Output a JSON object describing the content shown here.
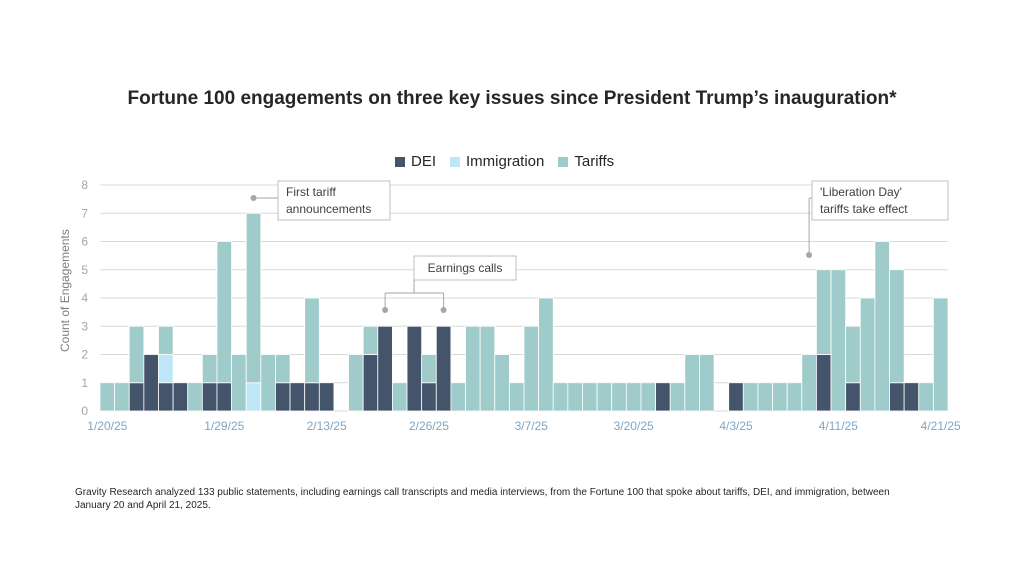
{
  "title": "Fortune 100 engagements on three key issues since President Trump’s inauguration*",
  "footnote": "Gravity Research analyzed 133 public statements, including earnings call transcripts and media interviews, from the Fortune 100 that spoke about tariffs, DEI, and immigration, between January 20 and April 21, 2025.",
  "colors": {
    "DEI": "#44546a",
    "Immigration": "#bde7f7",
    "Tariffs": "#9fcbcb",
    "grid": "#d9d9d9",
    "axisText": "#a6a6a6",
    "tickText": "#7da6c4"
  },
  "chart_data": {
    "type": "bar",
    "stacked": true,
    "ylabel": "Count of Engagements",
    "xlabel": "",
    "ylim": [
      0,
      8
    ],
    "yticks": [
      0,
      1,
      2,
      3,
      4,
      5,
      6,
      7,
      8
    ],
    "grid": true,
    "legend_position": "top",
    "x_tick_labels": [
      {
        "index": 0,
        "label": "1/20/25"
      },
      {
        "index": 8,
        "label": "1/29/25"
      },
      {
        "index": 15,
        "label": "2/13/25"
      },
      {
        "index": 22,
        "label": "2/26/25"
      },
      {
        "index": 29,
        "label": "3/7/25"
      },
      {
        "index": 36,
        "label": "3/20/25"
      },
      {
        "index": 43,
        "label": "4/3/25"
      },
      {
        "index": 50,
        "label": "4/11/25"
      },
      {
        "index": 57,
        "label": "4/21/25"
      }
    ],
    "series": [
      {
        "name": "DEI",
        "values": [
          0,
          0,
          1,
          2,
          1,
          1,
          0,
          1,
          1,
          0,
          0,
          0,
          1,
          1,
          1,
          1,
          0,
          0,
          2,
          3,
          0,
          3,
          1,
          3,
          0,
          0,
          0,
          0,
          0,
          0,
          0,
          0,
          0,
          0,
          0,
          0,
          0,
          0,
          1,
          0,
          0,
          0,
          0,
          1,
          0,
          0,
          0,
          0,
          0,
          2,
          0,
          1,
          0,
          0,
          1,
          1,
          0,
          0
        ]
      },
      {
        "name": "Immigration",
        "values": [
          0,
          0,
          0,
          0,
          1,
          0,
          0,
          0,
          0,
          0,
          1,
          0,
          0,
          0,
          0,
          0,
          0,
          0,
          0,
          0,
          0,
          0,
          0,
          0,
          0,
          0,
          0,
          0,
          0,
          0,
          0,
          0,
          0,
          0,
          0,
          0,
          0,
          0,
          0,
          0,
          0,
          0,
          0,
          0,
          0,
          0,
          0,
          0,
          0,
          0,
          0,
          0,
          0,
          0,
          0,
          0,
          0,
          0
        ]
      },
      {
        "name": "Tariffs",
        "values": [
          1,
          1,
          2,
          0,
          1,
          0,
          1,
          1,
          5,
          2,
          6,
          2,
          1,
          0,
          3,
          0,
          0,
          2,
          1,
          0,
          1,
          0,
          1,
          0,
          1,
          3,
          3,
          2,
          1,
          3,
          4,
          1,
          1,
          1,
          1,
          1,
          1,
          1,
          0,
          1,
          2,
          2,
          0,
          0,
          1,
          1,
          1,
          1,
          2,
          3,
          5,
          2,
          4,
          6,
          4,
          0,
          1,
          4
        ]
      }
    ],
    "annotations": [
      {
        "label_line1": "First tariff",
        "label_line2": "announcements",
        "bar_indices": [
          10
        ]
      },
      {
        "label_line1": "Earnings calls",
        "label_line2": "",
        "bar_indices": [
          19,
          23
        ]
      },
      {
        "label_line1": "'Liberation Day'",
        "label_line2": "tariffs take effect",
        "bar_indices": [
          48
        ]
      }
    ]
  }
}
